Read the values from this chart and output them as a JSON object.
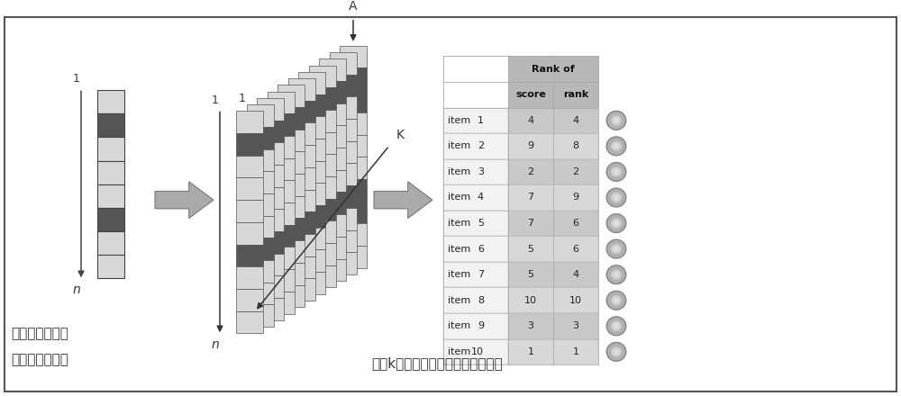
{
  "bg_color": "#ffffff",
  "border_color": "#555555",
  "col1_label1": "计算单个实验里",
  "col1_label2": "面的相关性排序",
  "col2_label": "综合k个实验的各自结果得到总排名",
  "table_header1": "Rank of",
  "table_header2_col1": "score",
  "table_header2_col2": "rank",
  "items": [
    "item  1",
    "item  2",
    "item  3",
    "item  4",
    "item  5",
    "item  6",
    "item  7",
    "item  8",
    "item  9",
    "item 10"
  ],
  "scores": [
    4,
    9,
    2,
    7,
    7,
    5,
    5,
    10,
    3,
    1
  ],
  "ranks": [
    4,
    8,
    2,
    9,
    6,
    6,
    4,
    10,
    3,
    1
  ],
  "single_col_light": "#d8d8d8",
  "single_col_dark": "#555555",
  "single_col_pattern": [
    0,
    1,
    0,
    0,
    0,
    1,
    0,
    0
  ],
  "mid_col_pattern": [
    0,
    1,
    0,
    0,
    0,
    0,
    1,
    0,
    0,
    0
  ],
  "table_header_bg": "#b8b8b8",
  "table_item_bg": "#f0f0f0",
  "table_score_bg_light": "#d8d8d8",
  "table_score_bg_dark": "#c8c8c8",
  "arrow_color": "#999999",
  "circle_color": "#a8a8a8",
  "circle_edge": "#888888"
}
